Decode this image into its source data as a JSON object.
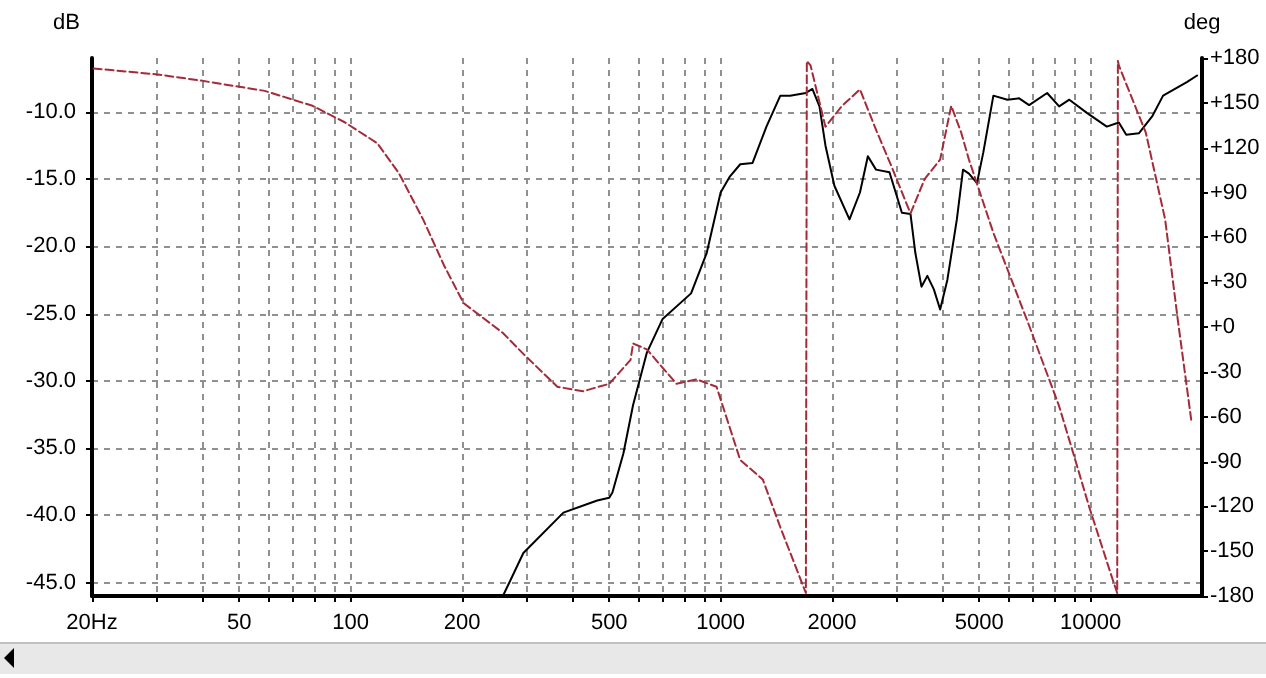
{
  "chart_data": {
    "type": "line",
    "ylabel": "dB",
    "y2label": "deg",
    "log": "x",
    "grid": true,
    "marker": "none",
    "xlim": [
      20,
      20000
    ],
    "xticks": [
      {
        "value": 20,
        "label": "20Hz"
      },
      {
        "value": 30,
        "label": null
      },
      {
        "value": 40,
        "label": null
      },
      50,
      {
        "value": 60,
        "label": null
      },
      {
        "value": 70,
        "label": null
      },
      {
        "value": 80,
        "label": null
      },
      {
        "value": 90,
        "label": null
      },
      100,
      200,
      {
        "value": 300,
        "label": null
      },
      {
        "value": 400,
        "label": null
      },
      500,
      {
        "value": 600,
        "label": null
      },
      {
        "value": 700,
        "label": null
      },
      {
        "value": 800,
        "label": null
      },
      {
        "value": 900,
        "label": null
      },
      1000,
      2000,
      {
        "value": 3000,
        "label": null
      },
      {
        "value": 4000,
        "label": null
      },
      5000,
      {
        "value": 6000,
        "label": null
      },
      {
        "value": 7000,
        "label": null
      },
      {
        "value": 8000,
        "label": null
      },
      {
        "value": 9000,
        "label": null
      },
      10000
    ],
    "ylim": [
      -46,
      -6
    ],
    "yticks": [
      {
        "value": -10,
        "label": "-10.0"
      },
      {
        "value": -15,
        "label": "-15.0"
      },
      {
        "value": -20,
        "label": "-20.0"
      },
      {
        "value": -25,
        "label": "-25.0"
      },
      {
        "value": -30,
        "label": "-30.0"
      },
      {
        "value": -35,
        "label": "-35.0"
      },
      {
        "value": -40,
        "label": "-40.0"
      },
      {
        "value": -45,
        "label": "-45.0"
      }
    ],
    "y2lim": [
      -180,
      180
    ],
    "y2ticks": [
      {
        "value": 180,
        "label": "+180"
      },
      {
        "value": 150,
        "label": "+150"
      },
      {
        "value": 120,
        "label": "+120"
      },
      {
        "value": 90,
        "label": "+90"
      },
      {
        "value": 60,
        "label": "+60"
      },
      {
        "value": 30,
        "label": "+30"
      },
      {
        "value": 0,
        "label": "+0"
      },
      -30,
      -60,
      -90,
      -120,
      -150,
      -180
    ],
    "series": [
      {
        "color": "#000000",
        "line_style": "solid",
        "x": [
          258,
          293,
          376,
          464,
          500,
          510,
          546,
          580,
          632,
          697,
          832,
          917,
          1000,
          1060,
          1130,
          1220,
          1330,
          1450,
          1540,
          1700,
          1770,
          1850,
          1920,
          2030,
          2230,
          2380,
          2500,
          2630,
          2860,
          3090,
          3260,
          3360,
          3490,
          3620,
          3770,
          3920,
          4100,
          4350,
          4520,
          4690,
          4930,
          5130,
          5460,
          5960,
          6410,
          6820,
          7630,
          8220,
          8760,
          9790,
          11060,
          11920,
          12480,
          13500,
          14700,
          15700,
          18200,
          19400
        ],
        "values": [
          -46,
          -42.8,
          -39.8,
          -38.9,
          -38.7,
          -38.3,
          -35.4,
          -31.8,
          -27.9,
          -25.4,
          -23.5,
          -20.5,
          -16,
          -14.8,
          -13.9,
          -13.8,
          -11.1,
          -8.8,
          -8.8,
          -8.6,
          -8.3,
          -9.6,
          -12.5,
          -15.5,
          -18,
          -16,
          -13.3,
          -14.3,
          -14.5,
          -17.5,
          -17.6,
          -20.5,
          -23,
          -22.2,
          -23.2,
          -24.7,
          -22.5,
          -18,
          -14.3,
          -14.6,
          -15.3,
          -13,
          -8.8,
          -9.1,
          -9,
          -9.5,
          -8.6,
          -9.6,
          -9.1,
          -10.1,
          -11.1,
          -10.8,
          -11.7,
          -11.6,
          -10.3,
          -8.8,
          -7.8,
          -7.3
        ]
      },
      {
        "color": "#a52a3a",
        "line_style": "dashed",
        "axis": "y2",
        "x": [
          20.2,
          30.1,
          39.1,
          58.6,
          78.9,
          96.4,
          118,
          135,
          157,
          179,
          202,
          258,
          293,
          362,
          425,
          500,
          571,
          580,
          632,
          690,
          760,
          860,
          975,
          1130,
          1300,
          1450,
          1700,
          1710,
          1750,
          1920,
          2130,
          2380,
          2630,
          2890,
          3260,
          3560,
          3920,
          4200,
          4470,
          4690,
          5460,
          6820,
          8220,
          8990,
          9900,
          11470,
          11800,
          11850,
          11920,
          14100,
          15900,
          17200,
          18700
        ],
        "values": [
          173,
          169,
          165,
          158,
          148,
          137,
          123,
          103,
          72,
          41,
          16,
          -4,
          -18,
          -40,
          -43,
          -38,
          -22,
          -11,
          -15,
          -26,
          -38,
          -35,
          -40,
          -89,
          -102,
          -134,
          -178,
          178,
          175,
          134,
          148,
          159,
          132,
          108,
          76,
          99,
          112,
          148,
          130,
          112,
          63,
          1,
          -53,
          -85,
          -120,
          -169,
          -178,
          178,
          175,
          130,
          72,
          5,
          -62
        ]
      }
    ]
  }
}
